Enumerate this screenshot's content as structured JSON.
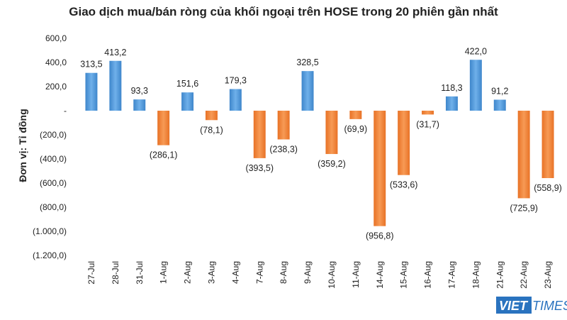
{
  "chart_data": {
    "type": "bar",
    "title": "Giao dịch mua/bán ròng của khối ngoại trên HOSE trong 20 phiên gần nhất",
    "ylabel": "Đơn vị: Tỉ đồng",
    "xlabel": "",
    "ylim": [
      -1200,
      600
    ],
    "yticks": [
      600,
      400,
      200,
      0,
      -200,
      -400,
      -600,
      -800,
      -1000,
      -1200
    ],
    "ytick_labels": [
      "600,0",
      "400,0",
      "200,0",
      "-",
      "(200,0)",
      "(400,0)",
      "(600,0)",
      "(800,0)",
      "(1.000,0)",
      "(1.200,0)"
    ],
    "categories": [
      "27-Jul",
      "28-Jul",
      "31-Jul",
      "1-Aug",
      "2-Aug",
      "3-Aug",
      "4-Aug",
      "7-Aug",
      "8-Aug",
      "9-Aug",
      "10-Aug",
      "11-Aug",
      "14-Aug",
      "15-Aug",
      "16-Aug",
      "17-Aug",
      "18-Aug",
      "21-Aug",
      "22-Aug",
      "23-Aug"
    ],
    "values": [
      313.5,
      413.2,
      93.3,
      -286.1,
      151.6,
      -78.1,
      179.3,
      -393.5,
      -238.3,
      328.5,
      -359.2,
      -69.9,
      -956.8,
      -533.6,
      -31.7,
      118.3,
      422.0,
      91.2,
      -725.9,
      -558.9
    ],
    "data_labels": [
      "313,5",
      "413,2",
      "93,3",
      "(286,1)",
      "151,6",
      "(78,1)",
      "179,3",
      "(393,5)",
      "(238,3)",
      "328,5",
      "(359,2)",
      "(69,9)",
      "(956,8)",
      "(533,6)",
      "(31,7)",
      "118,3",
      "422,0",
      "91,2",
      "(725,9)",
      "(558,9)"
    ],
    "colors": {
      "positive": "#4f96d6",
      "negative": "#ed7d31"
    },
    "grid": false,
    "legend": "none"
  },
  "watermark": {
    "part1": "VIET",
    "part2": "TIMES",
    "color_blue": "#2a73bf",
    "color_red": "#d7262c"
  }
}
